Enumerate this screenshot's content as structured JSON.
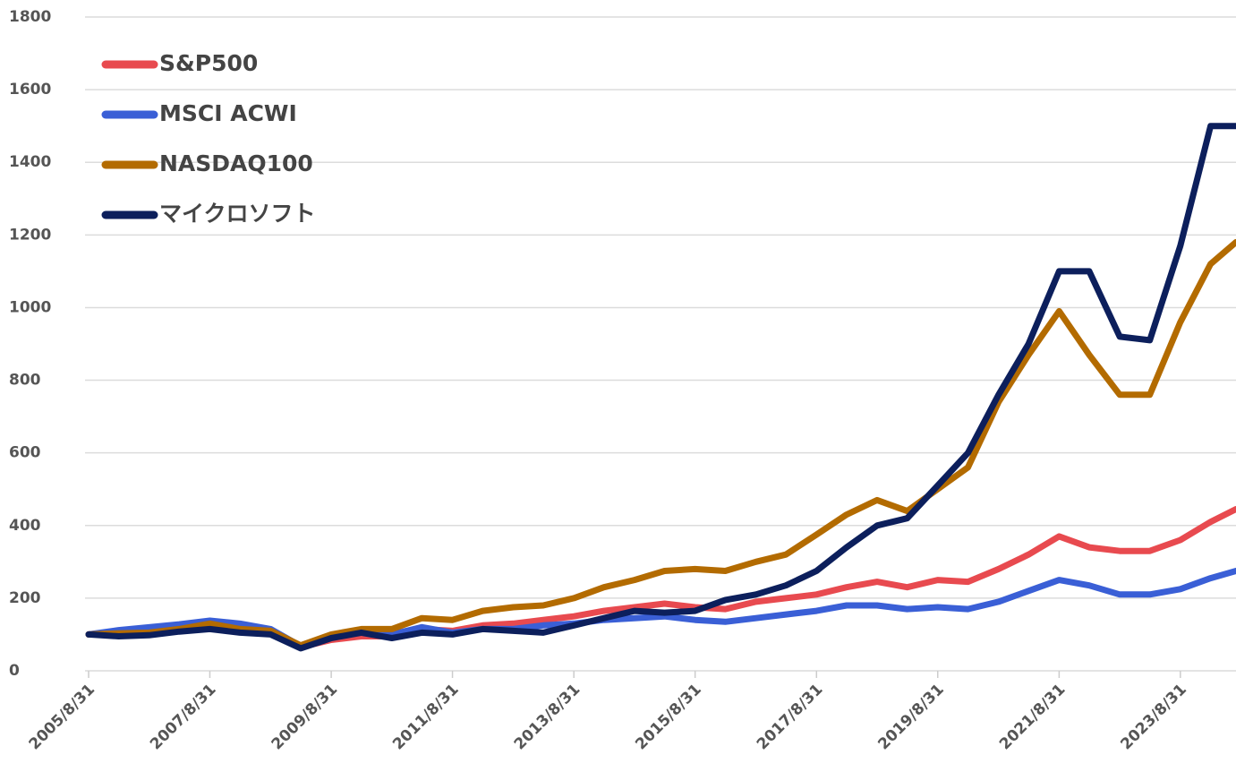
{
  "chart_data": {
    "type": "line",
    "x": [
      "2005/8/31",
      "2006/2/28",
      "2006/8/31",
      "2007/2/28",
      "2007/8/31",
      "2008/2/29",
      "2008/8/31",
      "2009/2/28",
      "2009/8/31",
      "2010/2/28",
      "2010/8/31",
      "2011/2/28",
      "2011/8/31",
      "2012/2/29",
      "2012/8/31",
      "2013/2/28",
      "2013/8/31",
      "2014/2/28",
      "2014/8/31",
      "2015/2/28",
      "2015/8/31",
      "2016/2/29",
      "2016/8/31",
      "2017/2/28",
      "2017/8/31",
      "2018/2/28",
      "2018/8/31",
      "2019/2/28",
      "2019/8/31",
      "2020/2/29",
      "2020/8/31",
      "2021/2/28",
      "2021/8/31",
      "2022/2/28",
      "2022/8/31",
      "2023/2/28",
      "2023/8/31",
      "2024/2/29",
      "2024/7/31"
    ],
    "series": [
      {
        "name": "S&P500",
        "color": "#e84a4f",
        "values": [
          100,
          108,
          112,
          120,
          128,
          115,
          105,
          65,
          85,
          95,
          95,
          115,
          110,
          125,
          130,
          140,
          150,
          165,
          175,
          185,
          175,
          170,
          190,
          200,
          210,
          230,
          245,
          230,
          250,
          245,
          280,
          320,
          370,
          340,
          330,
          330,
          360,
          410,
          445
        ]
      },
      {
        "name": "MSCI ACWI",
        "color": "#3a5fd6",
        "values": [
          100,
          112,
          120,
          128,
          138,
          130,
          115,
          68,
          95,
          105,
          100,
          120,
          105,
          115,
          115,
          125,
          130,
          140,
          145,
          150,
          140,
          135,
          145,
          155,
          165,
          180,
          180,
          170,
          175,
          170,
          190,
          220,
          250,
          235,
          210,
          210,
          225,
          255,
          275
        ]
      },
      {
        "name": "NASDAQ100",
        "color": "#b36b00",
        "values": [
          100,
          103,
          105,
          115,
          130,
          115,
          110,
          70,
          100,
          115,
          115,
          145,
          140,
          165,
          175,
          180,
          200,
          230,
          250,
          275,
          280,
          275,
          300,
          320,
          375,
          430,
          470,
          440,
          500,
          560,
          740,
          870,
          990,
          870,
          760,
          760,
          960,
          1120,
          1180
        ]
      },
      {
        "name": "マイクロソフト",
        "color": "#0c1f5c",
        "values": [
          100,
          95,
          98,
          108,
          115,
          105,
          100,
          62,
          90,
          105,
          90,
          105,
          100,
          115,
          110,
          105,
          125,
          145,
          165,
          160,
          165,
          195,
          210,
          235,
          275,
          340,
          400,
          420,
          510,
          600,
          760,
          900,
          1100,
          1100,
          920,
          910,
          1170,
          1500,
          1500
        ]
      }
    ],
    "xlim": [
      "2005/8/31",
      "2024/7/31"
    ],
    "xticks": [
      "2005/8/31",
      "2007/8/31",
      "2009/8/31",
      "2011/8/31",
      "2013/8/31",
      "2015/8/31",
      "2017/8/31",
      "2019/8/31",
      "2021/8/31",
      "2023/8/31"
    ],
    "ylim": [
      0,
      1800
    ],
    "yticks": [
      0,
      200,
      400,
      600,
      800,
      1000,
      1200,
      1400,
      1600,
      1800
    ],
    "grid": true,
    "legend": "top-left"
  }
}
